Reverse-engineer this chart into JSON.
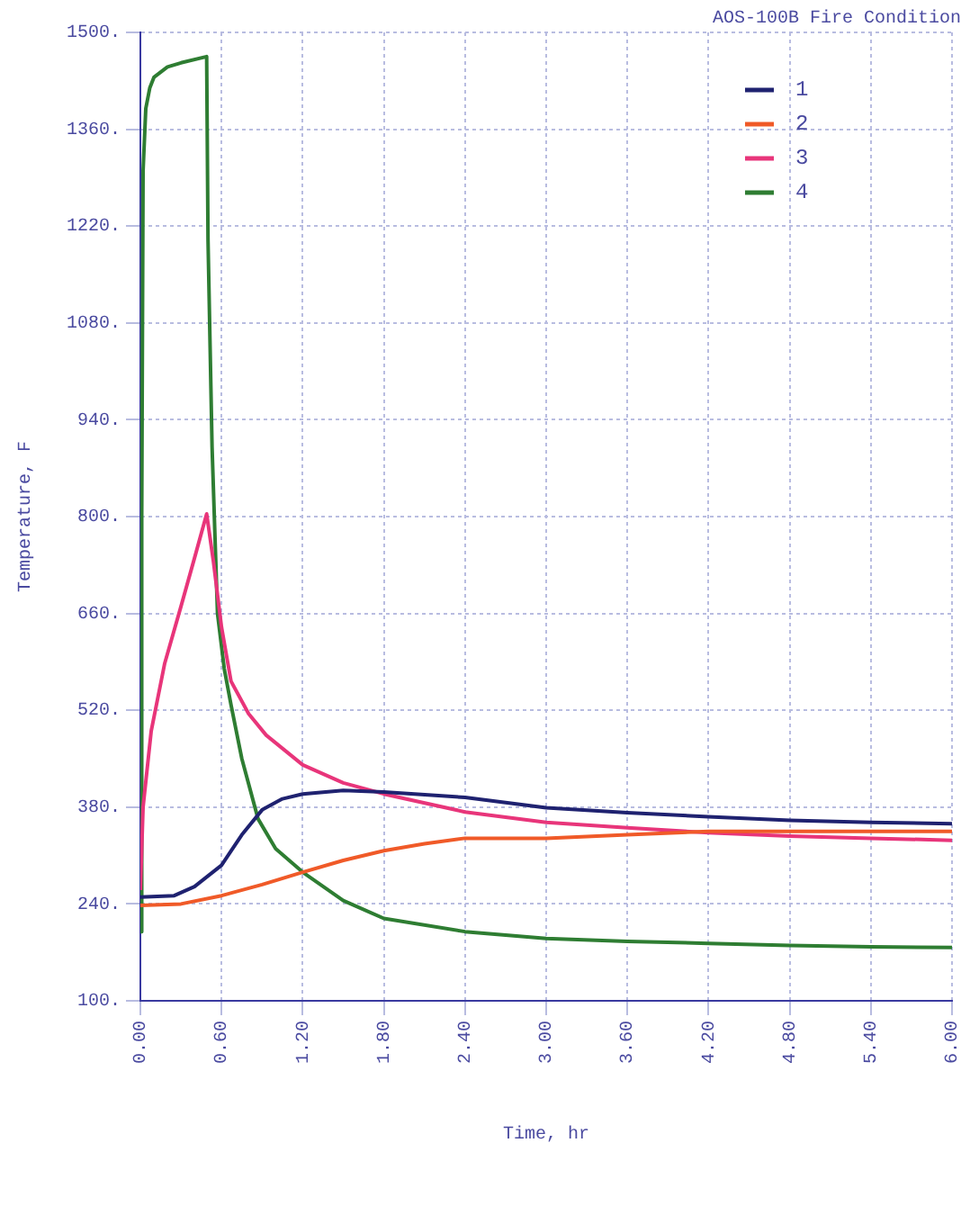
{
  "chart_data": {
    "type": "line",
    "subtitle": "AOS-100B Fire Condition",
    "xlabel": "Time, hr",
    "ylabel": "Temperature, F",
    "xlim": [
      0,
      6
    ],
    "ylim": [
      100,
      1500
    ],
    "xticks": [
      {
        "value": 0,
        "label": "0.00"
      },
      {
        "value": 0.6,
        "label": "0.60"
      },
      {
        "value": 1.2,
        "label": "1.20"
      },
      {
        "value": 1.8,
        "label": "1.80"
      },
      {
        "value": 2.4,
        "label": "2.40"
      },
      {
        "value": 3,
        "label": "3.00"
      },
      {
        "value": 3.6,
        "label": "3.60"
      },
      {
        "value": 4.2,
        "label": "4.20"
      },
      {
        "value": 4.8,
        "label": "4.80"
      },
      {
        "value": 5.4,
        "label": "5.40"
      },
      {
        "value": 6,
        "label": "6.00"
      }
    ],
    "yticks": [
      {
        "value": 100,
        "label": "100."
      },
      {
        "value": 240,
        "label": "240."
      },
      {
        "value": 380,
        "label": "380."
      },
      {
        "value": 520,
        "label": "520."
      },
      {
        "value": 660,
        "label": "660."
      },
      {
        "value": 800,
        "label": "800."
      },
      {
        "value": 940,
        "label": "940."
      },
      {
        "value": 1080,
        "label": "1080."
      },
      {
        "value": 1220,
        "label": "1220."
      },
      {
        "value": 1360,
        "label": "1360."
      },
      {
        "value": 1500,
        "label": "1500."
      }
    ],
    "grid": true,
    "legend": "top right",
    "marker": "none",
    "line_style": "solid",
    "series": [
      {
        "name": "1",
        "color": "#1f2270",
        "x": [
          0,
          0.25,
          0.4,
          0.6,
          0.75,
          0.9,
          1.05,
          1.2,
          1.5,
          1.8,
          2.4,
          3,
          3.6,
          4.2,
          4.8,
          5.4,
          6
        ],
        "values": [
          250,
          252,
          265,
          296,
          340,
          376,
          392,
          399,
          404,
          402,
          394,
          379,
          372,
          366,
          361,
          358,
          356
        ]
      },
      {
        "name": "2",
        "color": "#f05a28",
        "x": [
          0,
          0.3,
          0.6,
          0.9,
          1.2,
          1.5,
          1.8,
          2.1,
          2.4,
          3,
          3.6,
          4.2,
          4.8,
          5.4,
          6
        ],
        "values": [
          238,
          240,
          252,
          268,
          286,
          303,
          317,
          327,
          335,
          335,
          340,
          345,
          345,
          345,
          345
        ]
      },
      {
        "name": "3",
        "color": "#e8357a",
        "x": [
          0,
          0.02,
          0.08,
          0.18,
          0.3,
          0.4,
          0.49,
          0.54,
          0.6,
          0.67,
          0.8,
          0.93,
          1.2,
          1.5,
          1.8,
          2.4,
          3,
          3.6,
          4.2,
          4.8,
          5.4,
          6
        ],
        "values": [
          260,
          380,
          490,
          588,
          670,
          740,
          804,
          735,
          640,
          562,
          515,
          484,
          441,
          415,
          399,
          373,
          358,
          350,
          343,
          338,
          335,
          332
        ]
      },
      {
        "name": "4",
        "color": "#2e7d32",
        "x": [
          0,
          0.01,
          0.02,
          0.04,
          0.07,
          0.1,
          0.2,
          0.3,
          0.49,
          0.5,
          0.53,
          0.57,
          0.62,
          0.67,
          0.75,
          0.87,
          1,
          1.2,
          1.5,
          1.8,
          2.4,
          3,
          3.6,
          4.2,
          4.8,
          5.4,
          6
        ],
        "values": [
          200,
          800,
          1300,
          1390,
          1420,
          1435,
          1450,
          1456,
          1465,
          1200,
          900,
          660,
          580,
          528,
          450,
          363,
          320,
          286,
          245,
          219,
          200,
          190,
          186,
          183,
          180,
          178,
          177
        ]
      }
    ]
  }
}
